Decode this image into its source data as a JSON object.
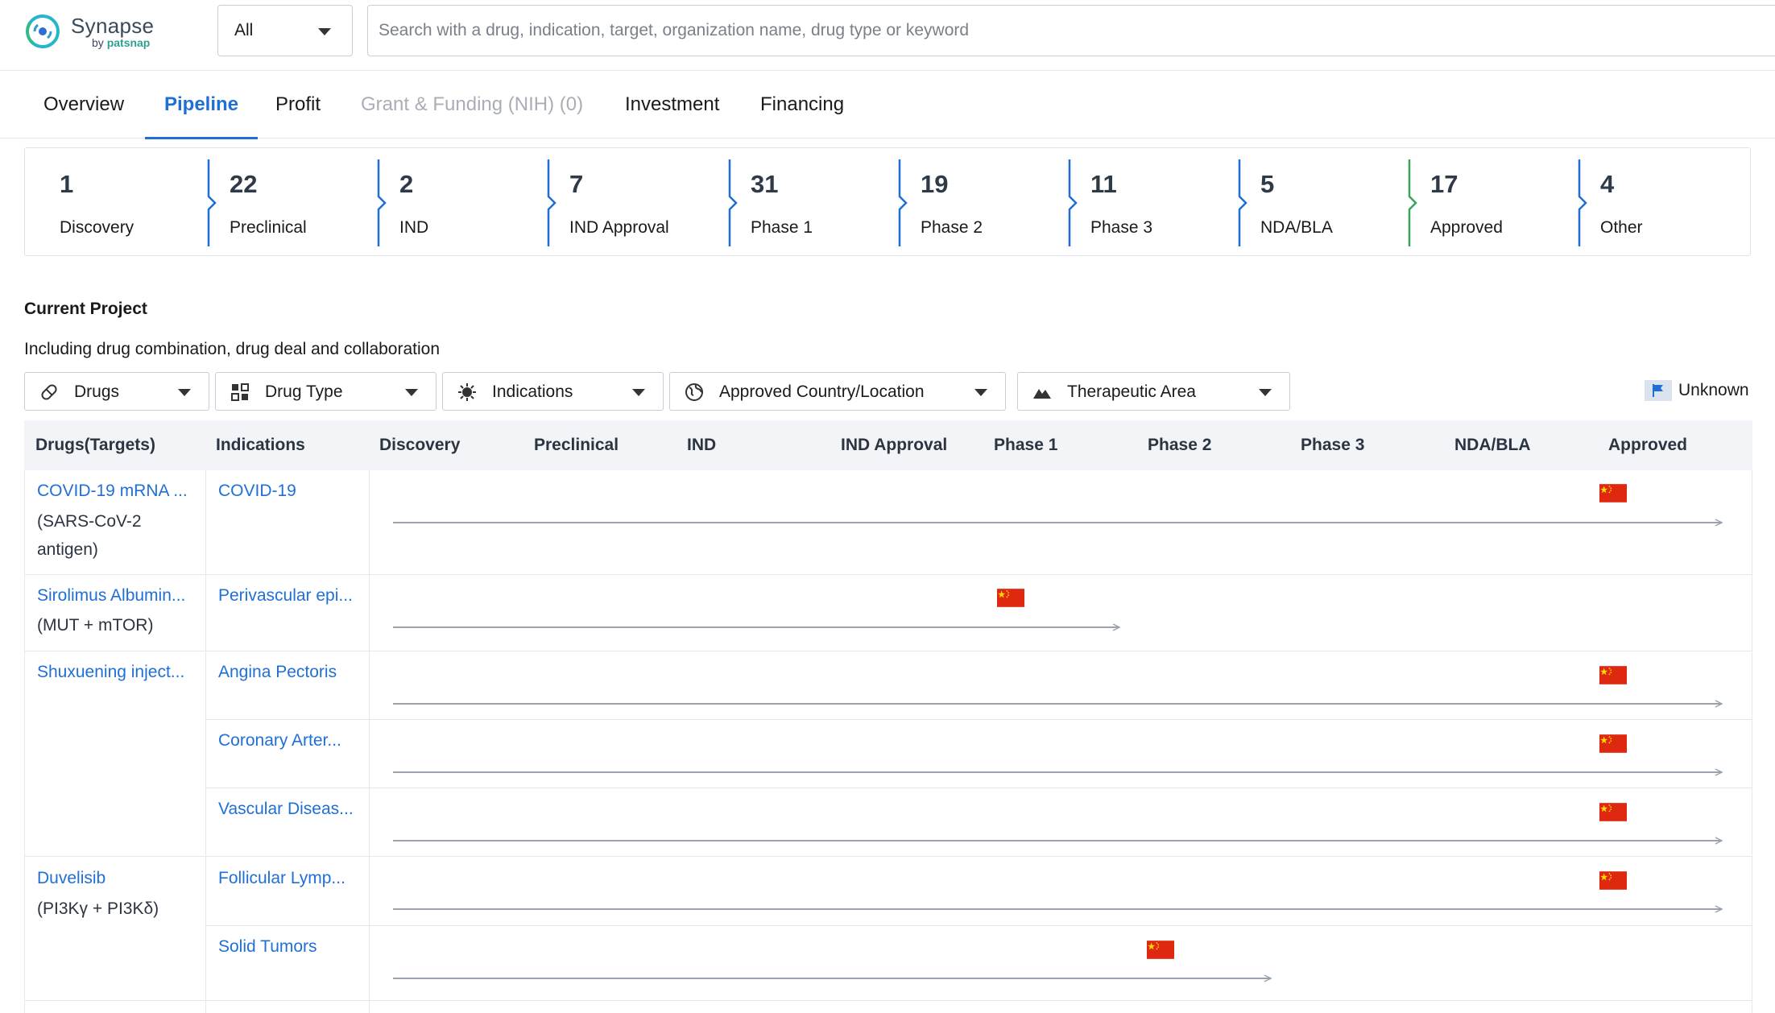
{
  "brand": {
    "name": "Synapse",
    "by": "by",
    "company": "patsnap"
  },
  "search": {
    "scope": "All",
    "placeholder": "Search with a drug, indication, target, organization name, drug type or keyword"
  },
  "tabs": [
    {
      "label": "Overview",
      "state": "normal"
    },
    {
      "label": "Pipeline",
      "state": "active"
    },
    {
      "label": "Profit",
      "state": "normal"
    },
    {
      "label": "Grant & Funding (NIH) (0)",
      "state": "disabled"
    },
    {
      "label": "Investment",
      "state": "normal"
    },
    {
      "label": "Financing",
      "state": "normal"
    }
  ],
  "stages": [
    {
      "count": "1",
      "label": "Discovery"
    },
    {
      "count": "22",
      "label": "Preclinical"
    },
    {
      "count": "2",
      "label": "IND"
    },
    {
      "count": "7",
      "label": "IND Approval"
    },
    {
      "count": "31",
      "label": "Phase 1"
    },
    {
      "count": "19",
      "label": "Phase 2"
    },
    {
      "count": "11",
      "label": "Phase 3"
    },
    {
      "count": "5",
      "label": "NDA/BLA"
    },
    {
      "count": "17",
      "label": "Approved"
    },
    {
      "count": "4",
      "label": "Other"
    }
  ],
  "section": {
    "title": "Current Project",
    "subtitle": "Including drug combination, drug deal and collaboration"
  },
  "filters": [
    {
      "label": "Drugs",
      "icon": "pill-icon"
    },
    {
      "label": "Drug Type",
      "icon": "drug-type-icon"
    },
    {
      "label": "Indications",
      "icon": "virus-icon"
    },
    {
      "label": "Approved Country/Location",
      "icon": "globe-icon"
    },
    {
      "label": "Therapeutic Area",
      "icon": "mountain-icon"
    }
  ],
  "legend": {
    "label": "Unknown",
    "icon": "flag-icon"
  },
  "table": {
    "headers": [
      "Drugs(Targets)",
      "Indications",
      "Discovery",
      "Preclinical",
      "IND",
      "IND Approval",
      "Phase 1",
      "Phase 2",
      "Phase 3",
      "NDA/BLA",
      "Approved"
    ],
    "drugs": [
      {
        "name": "COVID-19 mRNA ...",
        "targets": "(SARS-CoV-2 antigen)",
        "indications": [
          {
            "name": "COVID-19",
            "stage": "Approved",
            "country": "China"
          }
        ]
      },
      {
        "name": "Sirolimus Albumin...",
        "targets": "(MUT + mTOR)",
        "indications": [
          {
            "name": "Perivascular epi...",
            "stage": "Phase 1",
            "country": "China"
          }
        ]
      },
      {
        "name": "Shuxuening inject...",
        "targets": "",
        "indications": [
          {
            "name": "Angina Pectoris",
            "stage": "Approved",
            "country": "China"
          },
          {
            "name": "Coronary Arter...",
            "stage": "Approved",
            "country": "China"
          },
          {
            "name": "Vascular Diseas...",
            "stage": "Approved",
            "country": "China"
          }
        ]
      },
      {
        "name": "Duvelisib",
        "targets": "(PI3Kγ + PI3Kδ)",
        "indications": [
          {
            "name": "Follicular Lymp...",
            "stage": "Approved",
            "country": "China"
          },
          {
            "name": "Solid Tumors",
            "stage": "Phase 2",
            "country": "China"
          }
        ]
      }
    ]
  },
  "colors": {
    "accent": "#1f6fd6",
    "approved": "#3aa35a",
    "china_flag": "#de2910",
    "star": "#ffde00"
  }
}
